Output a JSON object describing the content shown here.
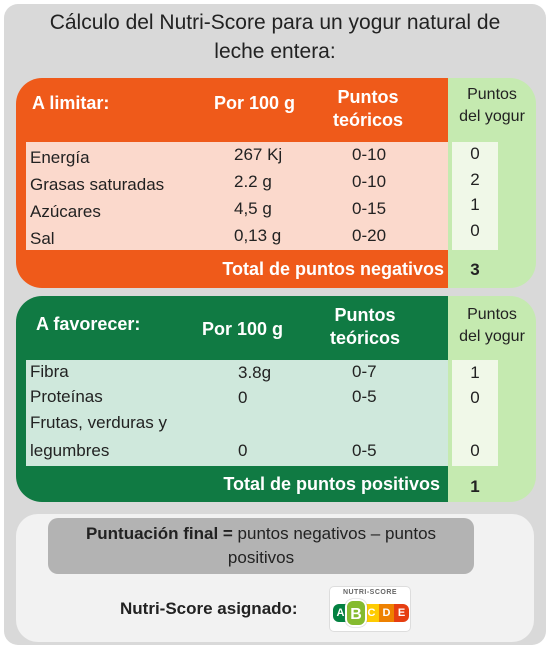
{
  "title": {
    "line1": "Cálculo del Nutri-Score para un yogur natural de",
    "line2": "leche entera:"
  },
  "negative": {
    "header": "A limitar:",
    "col_per100": "Por 100 g",
    "col_theoretical_1": "Puntos",
    "col_theoretical_2": "teóricos",
    "col_yogurt_1": "Puntos",
    "col_yogurt_2": "del yogur",
    "rows": [
      {
        "name": "Energía",
        "value": "267 Kj",
        "range": "0-10",
        "points": "0"
      },
      {
        "name": "Grasas saturadas",
        "value": "2.2 g",
        "range": "0-10",
        "points": "2"
      },
      {
        "name": "Azúcares",
        "value": "4,5 g",
        "range": "0-15",
        "points": "1"
      },
      {
        "name": "Sal",
        "value": "0,13 g",
        "range": "0-20",
        "points": "0"
      }
    ],
    "total_label": "Total de puntos negativos",
    "total_value": "3"
  },
  "positive": {
    "header": "A favorecer:",
    "col_per100": "Por 100 g",
    "col_theoretical_1": "Puntos",
    "col_theoretical_2": "teóricos",
    "col_yogurt_1": "Puntos",
    "col_yogurt_2": "del yogur",
    "rows": [
      {
        "name": "Fibra",
        "value": "3.8g",
        "range": "0-7",
        "points": "1"
      },
      {
        "name": "Proteínas",
        "value": "0",
        "range": "0-5",
        "points": "0"
      },
      {
        "name_1": "Frutas, verduras y",
        "name_2": "legumbres",
        "value": "0",
        "range": "0-5",
        "points": "0"
      }
    ],
    "total_label": "Total de puntos positivos",
    "total_value": "1"
  },
  "final": {
    "label_bold": "Puntuación final =",
    "text_1": " puntos negativos – puntos",
    "text_2": "positivos",
    "assigned_label": "Nutri-Score asignado:"
  },
  "nutriscore": {
    "title": "NUTRI-SCORE",
    "letters": [
      "A",
      "B",
      "C",
      "D",
      "E"
    ],
    "colors": [
      "#038141",
      "#85bb2f",
      "#fecb02",
      "#ee8100",
      "#e63e11"
    ],
    "selected": "B"
  }
}
